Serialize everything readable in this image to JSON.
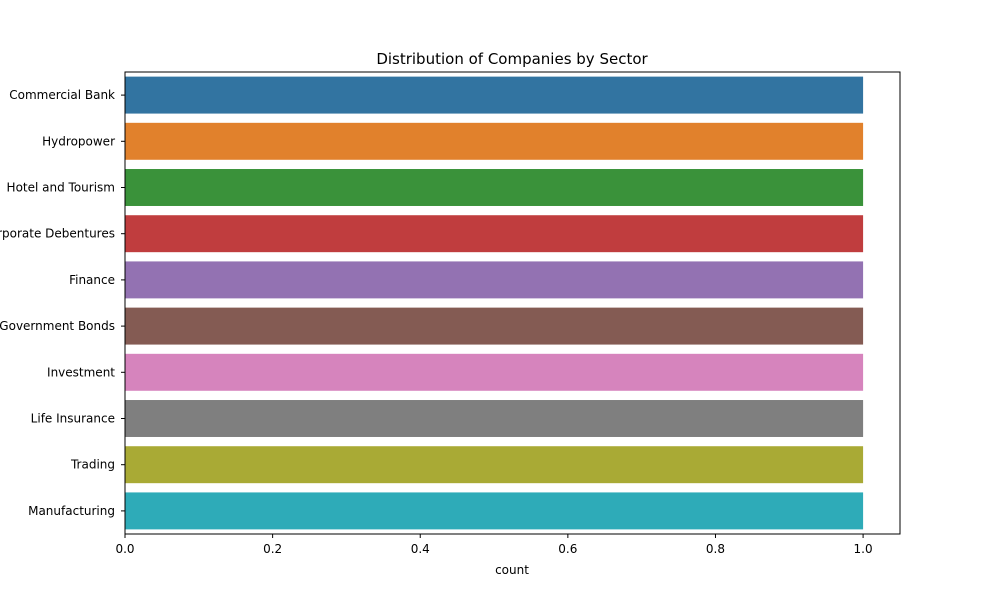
{
  "chart_data": {
    "type": "bar",
    "orientation": "horizontal",
    "title": "Distribution of Companies by Sector",
    "xlabel": "count",
    "ylabel": "",
    "categories": [
      "Commercial Bank",
      "Hydropower",
      "Hotel and Tourism",
      "Corporate Debentures",
      "Finance",
      "Government Bonds",
      "Investment",
      "Life Insurance",
      "Trading",
      "Manufacturing"
    ],
    "values": [
      1,
      1,
      1,
      1,
      1,
      1,
      1,
      1,
      1,
      1
    ],
    "colors": [
      "#3274a1",
      "#e1812c",
      "#3a923a",
      "#c03d3e",
      "#9372b2",
      "#845b53",
      "#d684bd",
      "#7f7f7f",
      "#a9aa35",
      "#2eabb8"
    ],
    "xlim": [
      0,
      1.05
    ],
    "xticks": [
      "0.0",
      "0.2",
      "0.4",
      "0.6",
      "0.8",
      "1.0"
    ],
    "grid": false
  }
}
